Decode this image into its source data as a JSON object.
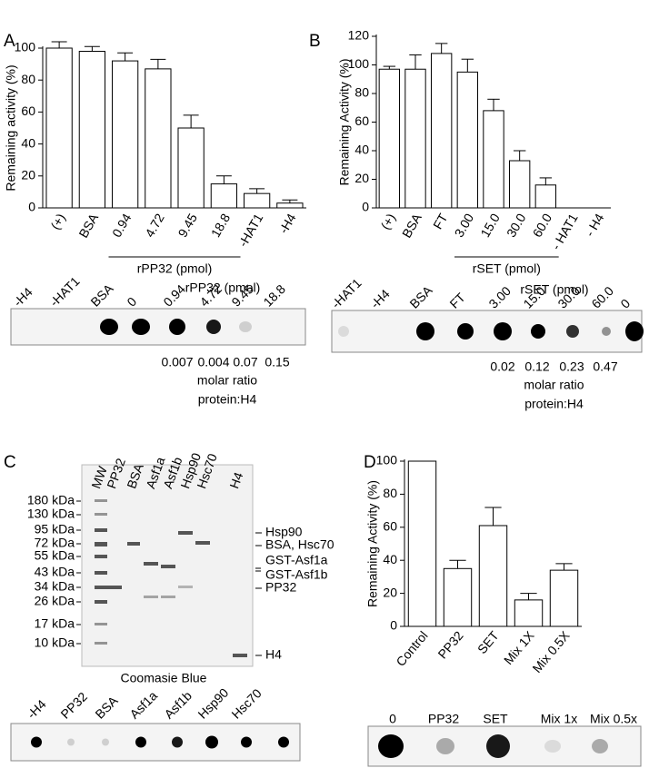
{
  "panel_labels": [
    "A",
    "B",
    "C",
    "D"
  ],
  "chart_data": [
    {
      "type": "bar",
      "ylabel": "Remaining activity (%)",
      "color": "#ffffff",
      "categories": [
        "(+)",
        "BSA",
        "0.94",
        "4.72",
        "9.45",
        "18.8",
        "-HAT1",
        "-H4"
      ],
      "values": [
        100,
        98,
        92,
        87,
        50,
        15,
        9,
        3
      ],
      "errors": [
        4,
        3,
        5,
        6,
        8,
        5,
        3,
        2
      ],
      "group_label": "rPP32 (pmol)",
      "ylim": [
        0,
        100
      ],
      "yticks": [
        0,
        20,
        40,
        60,
        80,
        100
      ]
    },
    {
      "type": "bar",
      "ylabel": "Remaining Activity (%)",
      "color": "#ffffff",
      "categories": [
        "(+)",
        "BSA",
        "FT",
        "3.00",
        "15.0",
        "30.0",
        "60.0",
        "- HAT1",
        "- H4"
      ],
      "values": [
        97,
        97,
        108,
        95,
        68,
        33,
        16,
        0,
        0
      ],
      "errors": [
        2,
        10,
        7,
        9,
        8,
        7,
        5,
        null,
        null
      ],
      "group_label": "rSET (pmol)",
      "ylim": [
        0,
        120
      ],
      "yticks": [
        0,
        20,
        40,
        60,
        80,
        100,
        120
      ]
    },
    {
      "type": "bar",
      "ylabel": "Remaining Activity (%)",
      "color": "#ffffff",
      "categories": [
        "Control",
        "PP32",
        "SET",
        "Mix 1X",
        "Mix 0.5X"
      ],
      "values": [
        100,
        35,
        61,
        16,
        34
      ],
      "errors": [
        null,
        5,
        11,
        4,
        4
      ],
      "ylim": [
        0,
        100
      ],
      "yticks": [
        0,
        20,
        40,
        60,
        80,
        100
      ]
    }
  ],
  "blots": [
    {
      "header": "rPP32 (pmol)",
      "lanes": [
        "-H4",
        "-HAT1",
        "BSA",
        "0",
        "0.94",
        "4.72",
        "9.45",
        "18.8"
      ],
      "ratios": [
        "0.007",
        "0.004",
        "0.07",
        "0.15"
      ],
      "ratio_caption": [
        "molar ratio",
        "protein:H4"
      ]
    },
    {
      "header": "rSET (pmol)",
      "lanes": [
        "-HAT1",
        "-H4",
        "BSA",
        "FT",
        "3.00",
        "15.0",
        "30.0",
        "60.0",
        "0"
      ],
      "ratios": [
        "0.02",
        "0.12",
        "0.23",
        "0.47"
      ],
      "ratio_caption": [
        "molar ratio",
        "protein:H4"
      ]
    },
    {
      "lanes": [
        "-H4",
        "PP32",
        "BSA",
        "Asf1a",
        "Asf1b",
        "Hsp90",
        "Hsc70"
      ]
    },
    {
      "lanes": [
        "0",
        "PP32",
        "SET",
        "Mix 1x",
        "Mix 0.5x"
      ]
    }
  ],
  "gel": {
    "lanes": [
      "MW",
      "PP32",
      "BSA",
      "Asf1a",
      "Asf1b",
      "Hsp90",
      "Hsc70",
      "H4"
    ],
    "markers": [
      "180 kDa",
      "130 kDa",
      "95 kDa",
      "72 kDa",
      "55 kDa",
      "43 kDa",
      "34 kDa",
      "26 kDa",
      "17 kDa",
      "10 kDa"
    ],
    "bands": [
      "Hsp90",
      "BSA, Hsc70",
      "GST-Asf1a",
      "GST-Asf1b",
      "PP32",
      "H4"
    ],
    "caption": "Coomasie Blue"
  }
}
